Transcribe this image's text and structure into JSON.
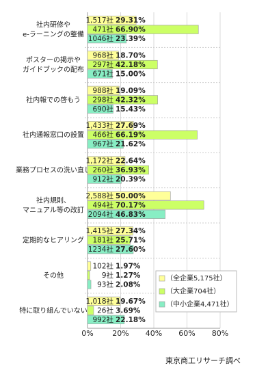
{
  "chart_data": {
    "type": "bar",
    "orientation": "horizontal",
    "categories": [
      [
        "社内研修や",
        "e-ラーニングの整備"
      ],
      [
        "ポスターの掲示や",
        "ガイドブックの配布"
      ],
      [
        "社内報での啓もう"
      ],
      [
        "社内通報窓口の設置"
      ],
      [
        "業務プロセスの洗い直し"
      ],
      [
        "社内規則、",
        "マニュアル等の改訂"
      ],
      [
        "定期的なヒアリング"
      ],
      [
        "その他"
      ],
      [
        "特に取り組んでいない"
      ]
    ],
    "series": [
      {
        "name": "（全企業5,175社）",
        "color": "#ffff99",
        "values": [
          29.31,
          18.7,
          19.09,
          27.69,
          22.64,
          50.0,
          27.34,
          1.97,
          19.67
        ],
        "value_labels": [
          "29.31%",
          "18.70%",
          "19.09%",
          "27.69%",
          "22.64%",
          "50.00%",
          "27.34%",
          "1.97%",
          "19.67%"
        ],
        "count_labels": [
          "1,517社",
          "968社",
          "988社",
          "1,433社",
          "1,172社",
          "2,588社",
          "1,415社",
          "102社",
          "1,018社"
        ]
      },
      {
        "name": "（大企業704社）",
        "color": "#ccff66",
        "values": [
          66.9,
          42.18,
          42.32,
          66.19,
          36.93,
          70.17,
          25.71,
          1.27,
          3.69
        ],
        "value_labels": [
          "66.90%",
          "42.18%",
          "42.32%",
          "66.19%",
          "36.93%",
          "70.17%",
          "25.71%",
          "1.27%",
          "3.69%"
        ],
        "count_labels": [
          "471社",
          "297社",
          "298社",
          "466社",
          "260社",
          "494社",
          "181社",
          "9社",
          "26社"
        ]
      },
      {
        "name": "（中小企業4,471社）",
        "color": "#88eec4",
        "values": [
          23.39,
          15.0,
          15.43,
          21.62,
          20.39,
          46.83,
          27.6,
          2.08,
          22.18
        ],
        "value_labels": [
          "23.39%",
          "15.00%",
          "15.43%",
          "21.62%",
          "20.39%",
          "46.83%",
          "27.60%",
          "2.08%",
          "22.18%"
        ],
        "count_labels": [
          "1046社",
          "671社",
          "690社",
          "967社",
          "912社",
          "2094社",
          "1234社",
          "93社",
          "992社"
        ]
      }
    ],
    "xlim": [
      0,
      80
    ],
    "xticks": [
      {
        "value": 0,
        "label": "0%"
      },
      {
        "value": 20,
        "label": "20%"
      },
      {
        "value": 40,
        "label": "40%"
      },
      {
        "value": 60,
        "label": "60%"
      },
      {
        "value": 80,
        "label": "80%"
      }
    ],
    "grid": true,
    "legend": "lower right",
    "source": "東京商工リサーチ調べ"
  }
}
